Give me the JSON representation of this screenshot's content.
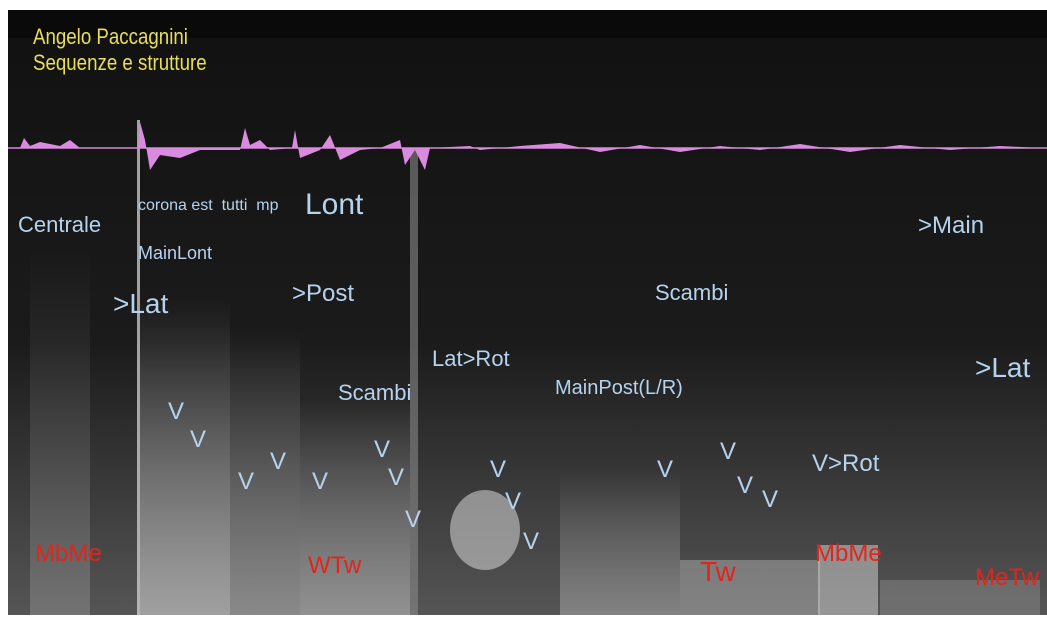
{
  "header": {
    "title": "Angelo Paccagnini",
    "subtitle": "Sequenze e strutture"
  },
  "labels": [
    "Centrale",
    "corona est  tutti  mp",
    "MainLont",
    "Lont",
    ">Lat",
    ">Post",
    ">Main",
    "Scambi",
    "Lat>Rot",
    "Scambi",
    "MainPost(L/R)",
    ">Lat",
    "V",
    "V",
    "V",
    "V",
    "V",
    "V",
    "V",
    "V",
    "V",
    "V",
    "V",
    "V",
    "V",
    "V",
    "V",
    "V>Rot"
  ],
  "red_labels": [
    "MbMe",
    "WTw",
    "Tw",
    "MbMe",
    "MeTw"
  ]
}
